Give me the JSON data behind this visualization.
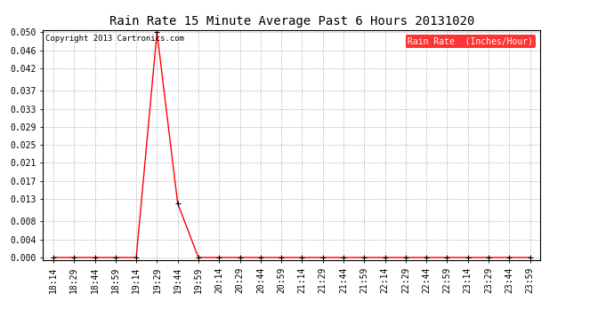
{
  "title": "Rain Rate 15 Minute Average Past 6 Hours 20131020",
  "copyright_text": "Copyright 2013 Cartronics.com",
  "legend_label": "Rain Rate  (Inches/Hour)",
  "background_color": "#ffffff",
  "plot_bg_color": "#ffffff",
  "grid_color": "#bbbbbb",
  "line_color": "#ff0000",
  "marker_color": "#000000",
  "legend_bg": "#ff0000",
  "legend_text_color": "#ffffff",
  "x_labels": [
    "18:14",
    "18:29",
    "18:44",
    "18:59",
    "19:14",
    "19:29",
    "19:44",
    "19:59",
    "20:14",
    "20:29",
    "20:44",
    "20:59",
    "21:14",
    "21:29",
    "21:44",
    "21:59",
    "22:14",
    "22:29",
    "22:44",
    "22:59",
    "23:14",
    "23:29",
    "23:44",
    "23:59"
  ],
  "y_values": [
    0.0,
    0.0,
    0.0,
    0.0,
    0.0,
    0.05,
    0.012,
    0.0,
    0.0,
    0.0,
    0.0,
    0.0,
    0.0,
    0.0,
    0.0,
    0.0,
    0.0,
    0.0,
    0.0,
    0.0,
    0.0,
    0.0,
    0.0,
    0.0
  ],
  "ylim_min": 0.0,
  "ylim_max": 0.05,
  "yticks": [
    0.0,
    0.004,
    0.008,
    0.013,
    0.017,
    0.021,
    0.025,
    0.029,
    0.033,
    0.037,
    0.042,
    0.046,
    0.05
  ],
  "title_fontsize": 10,
  "tick_fontsize": 7,
  "copyright_fontsize": 6.5
}
